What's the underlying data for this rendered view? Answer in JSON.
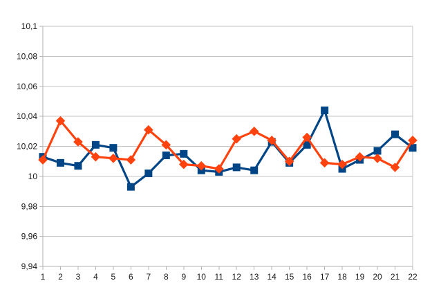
{
  "chart_data": {
    "type": "line",
    "title": "",
    "xlabel": "",
    "ylabel": "",
    "legend": "none",
    "grid": "horizontal",
    "decimal_separator": ",",
    "x": [
      1,
      2,
      3,
      4,
      5,
      6,
      7,
      8,
      9,
      10,
      11,
      12,
      13,
      14,
      15,
      16,
      17,
      18,
      19,
      20,
      21,
      22
    ],
    "x_tick_labels": [
      "1",
      "2",
      "3",
      "4",
      "5",
      "6",
      "7",
      "8",
      "9",
      "10",
      "11",
      "12",
      "13",
      "14",
      "15",
      "16",
      "17",
      "18",
      "19",
      "20",
      "21",
      "22"
    ],
    "ylim": [
      9.94,
      10.1
    ],
    "y_tick_values": [
      10.1,
      10.08,
      10.06,
      10.04,
      10.02,
      10.0,
      9.98,
      9.96,
      9.94
    ],
    "y_tick_labels": [
      "10,1",
      "10,08",
      "10,06",
      "10,04",
      "10,02",
      "10",
      "9,98",
      "9,96",
      "9,94"
    ],
    "series": [
      {
        "name": "blue",
        "color": "#004586",
        "marker": "square",
        "values": [
          10.013,
          10.009,
          10.007,
          10.021,
          10.019,
          9.993,
          10.002,
          10.014,
          10.015,
          10.004,
          10.003,
          10.006,
          10.004,
          10.023,
          10.009,
          10.021,
          10.044,
          10.005,
          10.011,
          10.017,
          10.028,
          10.019
        ]
      },
      {
        "name": "orange",
        "color": "#FF420E",
        "marker": "diamond",
        "values": [
          10.011,
          10.037,
          10.023,
          10.013,
          10.012,
          10.011,
          10.031,
          10.021,
          10.008,
          10.007,
          10.005,
          10.025,
          10.03,
          10.024,
          10.01,
          10.026,
          10.009,
          10.008,
          10.013,
          10.012,
          10.006,
          10.024
        ]
      }
    ],
    "colors": {
      "gridline": "#c3c3c3",
      "axis": "#b3b3b3",
      "tick": "#b3b3b3",
      "label_text": "#1a1a1a",
      "background": "#ffffff"
    }
  }
}
